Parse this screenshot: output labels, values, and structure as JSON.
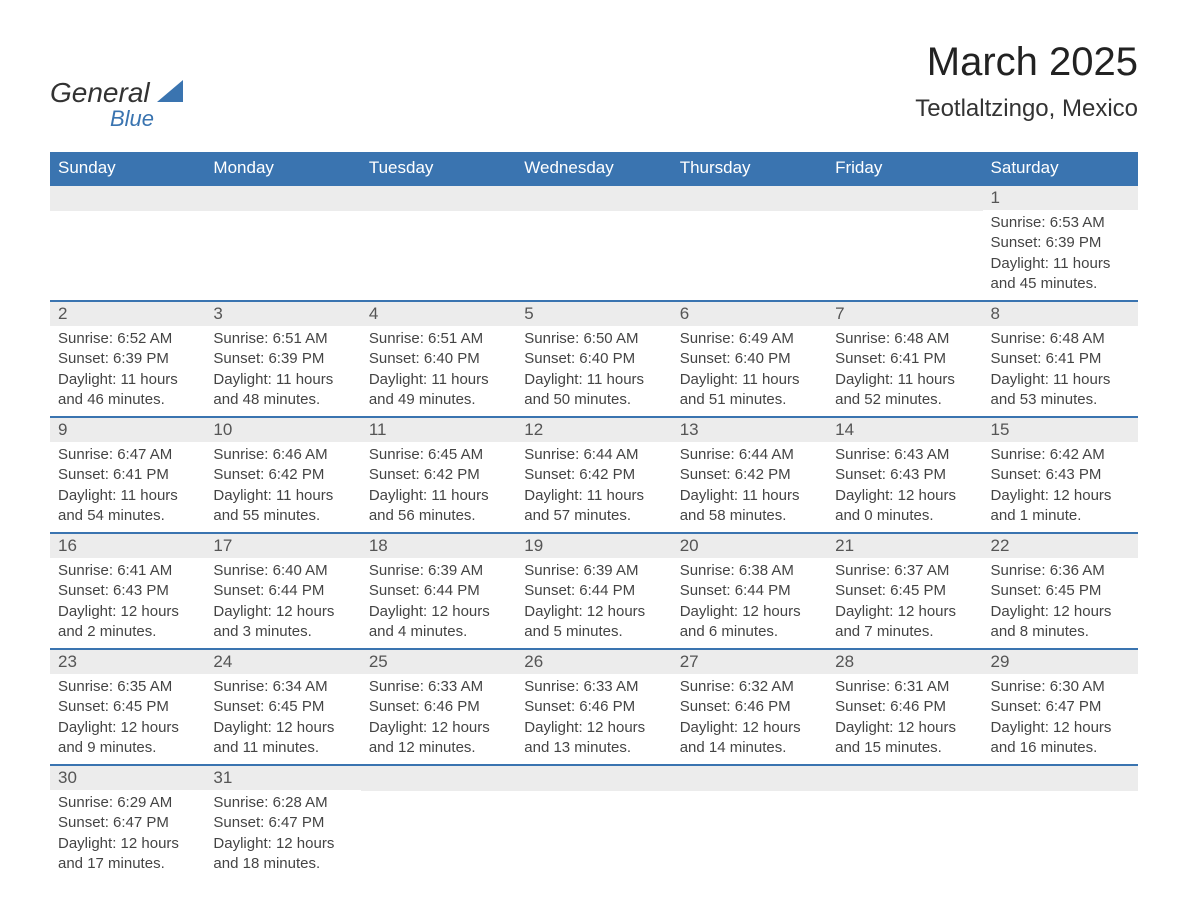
{
  "logo": {
    "general": "General",
    "blue": "Blue"
  },
  "title": "March 2025",
  "location": "Teotlaltzingo, Mexico",
  "colors": {
    "header_bg": "#3a74b0",
    "header_text": "#ffffff",
    "daynum_bg": "#ececec",
    "daynum_text": "#555555",
    "body_text": "#444444",
    "title_text": "#222222",
    "logo_blue": "#3a74b0",
    "border": "#3a74b0"
  },
  "day_headers": [
    "Sunday",
    "Monday",
    "Tuesday",
    "Wednesday",
    "Thursday",
    "Friday",
    "Saturday"
  ],
  "weeks": [
    [
      null,
      null,
      null,
      null,
      null,
      null,
      {
        "n": "1",
        "sunrise": "Sunrise: 6:53 AM",
        "sunset": "Sunset: 6:39 PM",
        "daylight": "Daylight: 11 hours and 45 minutes."
      }
    ],
    [
      {
        "n": "2",
        "sunrise": "Sunrise: 6:52 AM",
        "sunset": "Sunset: 6:39 PM",
        "daylight": "Daylight: 11 hours and 46 minutes."
      },
      {
        "n": "3",
        "sunrise": "Sunrise: 6:51 AM",
        "sunset": "Sunset: 6:39 PM",
        "daylight": "Daylight: 11 hours and 48 minutes."
      },
      {
        "n": "4",
        "sunrise": "Sunrise: 6:51 AM",
        "sunset": "Sunset: 6:40 PM",
        "daylight": "Daylight: 11 hours and 49 minutes."
      },
      {
        "n": "5",
        "sunrise": "Sunrise: 6:50 AM",
        "sunset": "Sunset: 6:40 PM",
        "daylight": "Daylight: 11 hours and 50 minutes."
      },
      {
        "n": "6",
        "sunrise": "Sunrise: 6:49 AM",
        "sunset": "Sunset: 6:40 PM",
        "daylight": "Daylight: 11 hours and 51 minutes."
      },
      {
        "n": "7",
        "sunrise": "Sunrise: 6:48 AM",
        "sunset": "Sunset: 6:41 PM",
        "daylight": "Daylight: 11 hours and 52 minutes."
      },
      {
        "n": "8",
        "sunrise": "Sunrise: 6:48 AM",
        "sunset": "Sunset: 6:41 PM",
        "daylight": "Daylight: 11 hours and 53 minutes."
      }
    ],
    [
      {
        "n": "9",
        "sunrise": "Sunrise: 6:47 AM",
        "sunset": "Sunset: 6:41 PM",
        "daylight": "Daylight: 11 hours and 54 minutes."
      },
      {
        "n": "10",
        "sunrise": "Sunrise: 6:46 AM",
        "sunset": "Sunset: 6:42 PM",
        "daylight": "Daylight: 11 hours and 55 minutes."
      },
      {
        "n": "11",
        "sunrise": "Sunrise: 6:45 AM",
        "sunset": "Sunset: 6:42 PM",
        "daylight": "Daylight: 11 hours and 56 minutes."
      },
      {
        "n": "12",
        "sunrise": "Sunrise: 6:44 AM",
        "sunset": "Sunset: 6:42 PM",
        "daylight": "Daylight: 11 hours and 57 minutes."
      },
      {
        "n": "13",
        "sunrise": "Sunrise: 6:44 AM",
        "sunset": "Sunset: 6:42 PM",
        "daylight": "Daylight: 11 hours and 58 minutes."
      },
      {
        "n": "14",
        "sunrise": "Sunrise: 6:43 AM",
        "sunset": "Sunset: 6:43 PM",
        "daylight": "Daylight: 12 hours and 0 minutes."
      },
      {
        "n": "15",
        "sunrise": "Sunrise: 6:42 AM",
        "sunset": "Sunset: 6:43 PM",
        "daylight": "Daylight: 12 hours and 1 minute."
      }
    ],
    [
      {
        "n": "16",
        "sunrise": "Sunrise: 6:41 AM",
        "sunset": "Sunset: 6:43 PM",
        "daylight": "Daylight: 12 hours and 2 minutes."
      },
      {
        "n": "17",
        "sunrise": "Sunrise: 6:40 AM",
        "sunset": "Sunset: 6:44 PM",
        "daylight": "Daylight: 12 hours and 3 minutes."
      },
      {
        "n": "18",
        "sunrise": "Sunrise: 6:39 AM",
        "sunset": "Sunset: 6:44 PM",
        "daylight": "Daylight: 12 hours and 4 minutes."
      },
      {
        "n": "19",
        "sunrise": "Sunrise: 6:39 AM",
        "sunset": "Sunset: 6:44 PM",
        "daylight": "Daylight: 12 hours and 5 minutes."
      },
      {
        "n": "20",
        "sunrise": "Sunrise: 6:38 AM",
        "sunset": "Sunset: 6:44 PM",
        "daylight": "Daylight: 12 hours and 6 minutes."
      },
      {
        "n": "21",
        "sunrise": "Sunrise: 6:37 AM",
        "sunset": "Sunset: 6:45 PM",
        "daylight": "Daylight: 12 hours and 7 minutes."
      },
      {
        "n": "22",
        "sunrise": "Sunrise: 6:36 AM",
        "sunset": "Sunset: 6:45 PM",
        "daylight": "Daylight: 12 hours and 8 minutes."
      }
    ],
    [
      {
        "n": "23",
        "sunrise": "Sunrise: 6:35 AM",
        "sunset": "Sunset: 6:45 PM",
        "daylight": "Daylight: 12 hours and 9 minutes."
      },
      {
        "n": "24",
        "sunrise": "Sunrise: 6:34 AM",
        "sunset": "Sunset: 6:45 PM",
        "daylight": "Daylight: 12 hours and 11 minutes."
      },
      {
        "n": "25",
        "sunrise": "Sunrise: 6:33 AM",
        "sunset": "Sunset: 6:46 PM",
        "daylight": "Daylight: 12 hours and 12 minutes."
      },
      {
        "n": "26",
        "sunrise": "Sunrise: 6:33 AM",
        "sunset": "Sunset: 6:46 PM",
        "daylight": "Daylight: 12 hours and 13 minutes."
      },
      {
        "n": "27",
        "sunrise": "Sunrise: 6:32 AM",
        "sunset": "Sunset: 6:46 PM",
        "daylight": "Daylight: 12 hours and 14 minutes."
      },
      {
        "n": "28",
        "sunrise": "Sunrise: 6:31 AM",
        "sunset": "Sunset: 6:46 PM",
        "daylight": "Daylight: 12 hours and 15 minutes."
      },
      {
        "n": "29",
        "sunrise": "Sunrise: 6:30 AM",
        "sunset": "Sunset: 6:47 PM",
        "daylight": "Daylight: 12 hours and 16 minutes."
      }
    ],
    [
      {
        "n": "30",
        "sunrise": "Sunrise: 6:29 AM",
        "sunset": "Sunset: 6:47 PM",
        "daylight": "Daylight: 12 hours and 17 minutes."
      },
      {
        "n": "31",
        "sunrise": "Sunrise: 6:28 AM",
        "sunset": "Sunset: 6:47 PM",
        "daylight": "Daylight: 12 hours and 18 minutes."
      },
      null,
      null,
      null,
      null,
      null
    ]
  ]
}
